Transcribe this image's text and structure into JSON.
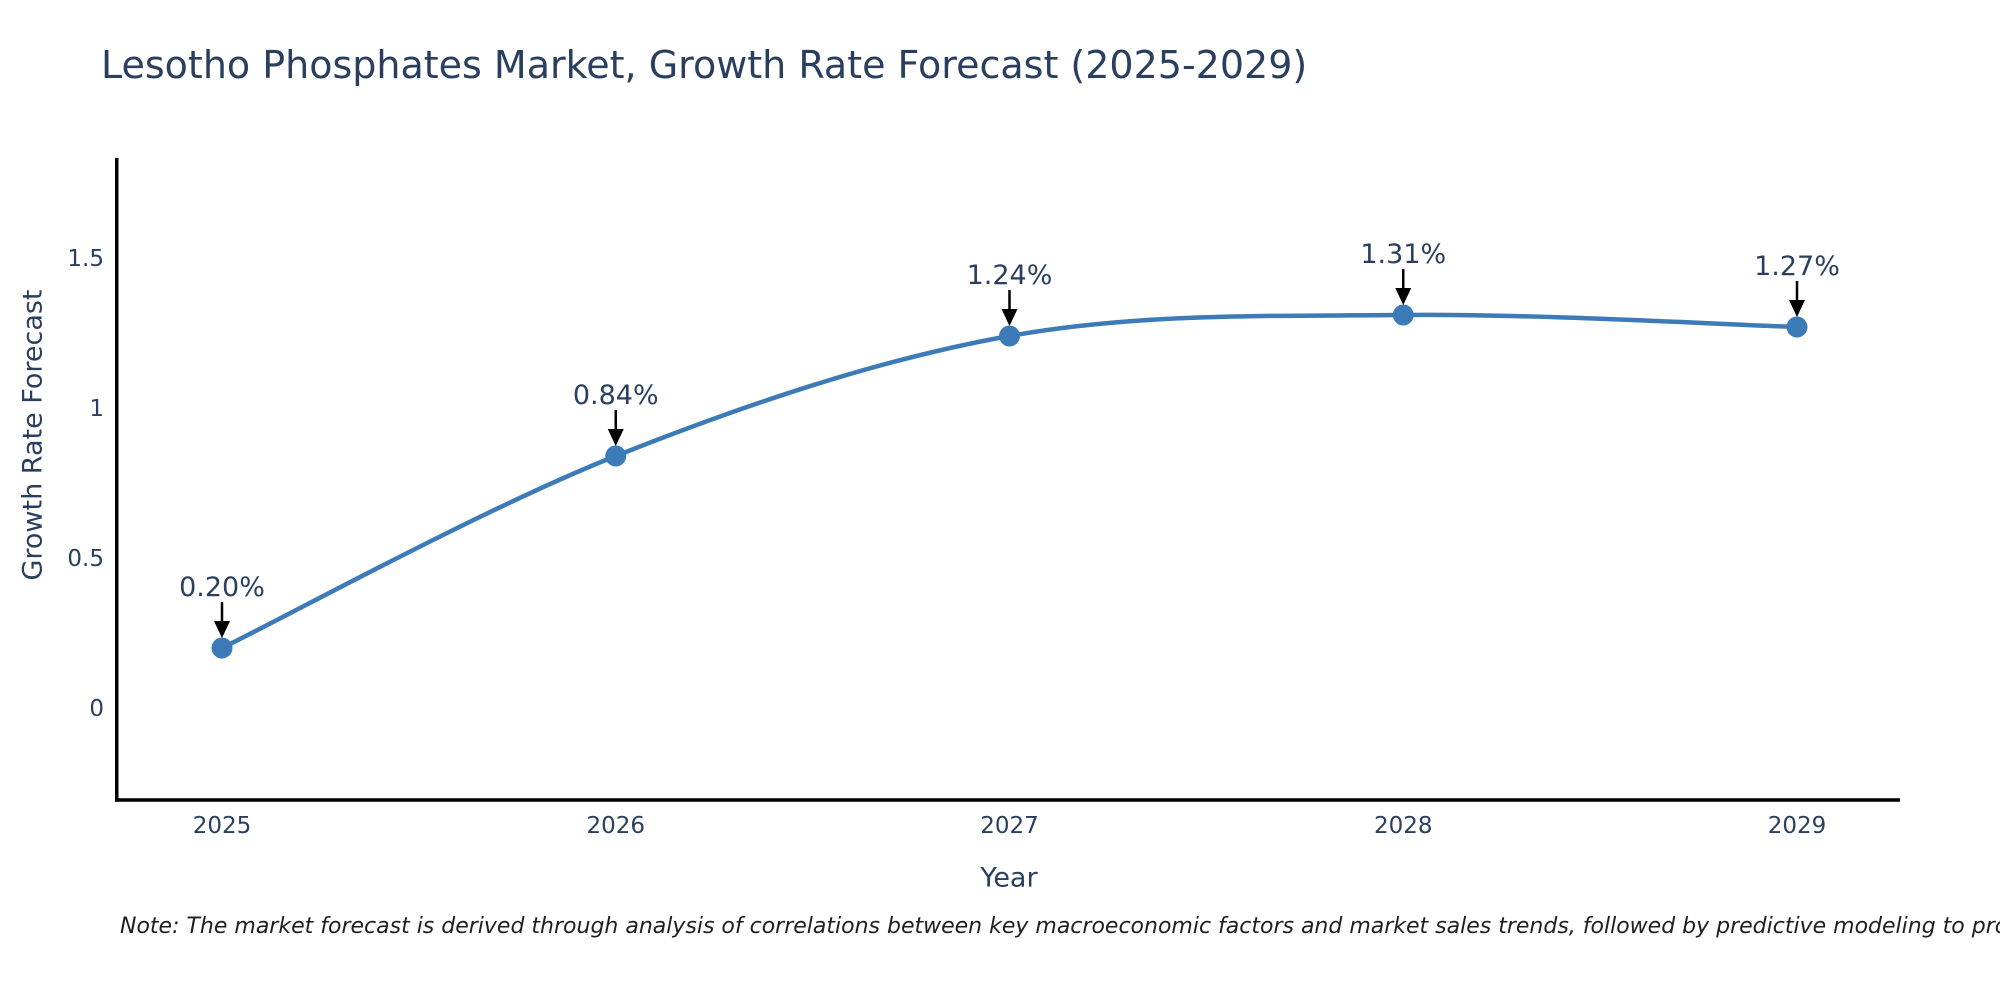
{
  "chart_data": {
    "type": "line",
    "title": "Lesotho Phosphates Market, Growth Rate Forecast (2025-2029)",
    "xlabel": "Year",
    "ylabel": "Growth Rate Forecast",
    "x": [
      2025,
      2026,
      2027,
      2028,
      2029
    ],
    "series": [
      {
        "name": "Growth Rate Forecast",
        "values": [
          0.2,
          0.84,
          1.24,
          1.31,
          1.27
        ],
        "point_labels": [
          "0.20%",
          "0.84%",
          "1.24%",
          "1.31%",
          "1.27%"
        ]
      }
    ],
    "yticks": [
      0,
      0.5,
      1,
      1.5
    ],
    "ylim": [
      -0.31,
      1.83
    ],
    "xlim": [
      2024.74,
      2029.26
    ],
    "grid": false,
    "legend_position": "none",
    "line_style": "smooth-spline",
    "marker": "circle",
    "annotation_arrows": true,
    "colors": {
      "line": "#3d7ab8",
      "marker": "#3d7ab8",
      "axis": "#000000",
      "text": "#2a3f5f",
      "arrow": "#000000"
    }
  },
  "note": "Note: The market forecast is derived through analysis of correlations between key macroeconomic factors and market sales trends, followed by predictive modeling to project future sales"
}
